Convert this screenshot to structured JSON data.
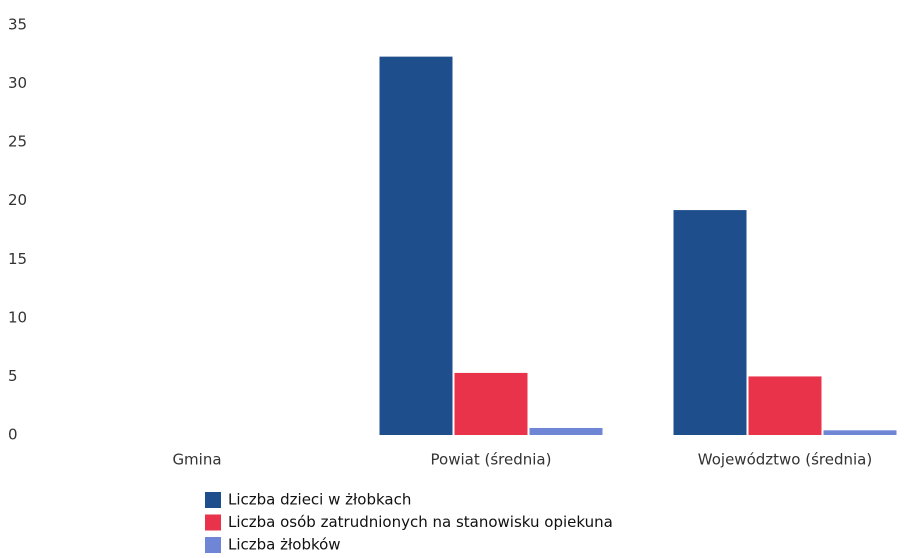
{
  "chart_data": {
    "type": "bar",
    "categories": [
      "Gmina",
      "Powiat (średnia)",
      "Województwo (średnia)"
    ],
    "series": [
      {
        "name": "Liczba dzieci w żłobkach",
        "color": "#1f4e8c",
        "values": [
          0,
          32.3,
          19.2
        ]
      },
      {
        "name": "Liczba osób zatrudnionych na stanowisku opiekuna",
        "color": "#e8334a",
        "values": [
          0,
          5.3,
          5.0
        ]
      },
      {
        "name": "Liczba żłobków",
        "color": "#6f86d6",
        "values": [
          0,
          0.6,
          0.4
        ]
      }
    ],
    "ylim": [
      0,
      35
    ],
    "yticks": [
      0,
      5,
      10,
      15,
      20,
      25,
      30,
      35
    ],
    "grid": false
  }
}
